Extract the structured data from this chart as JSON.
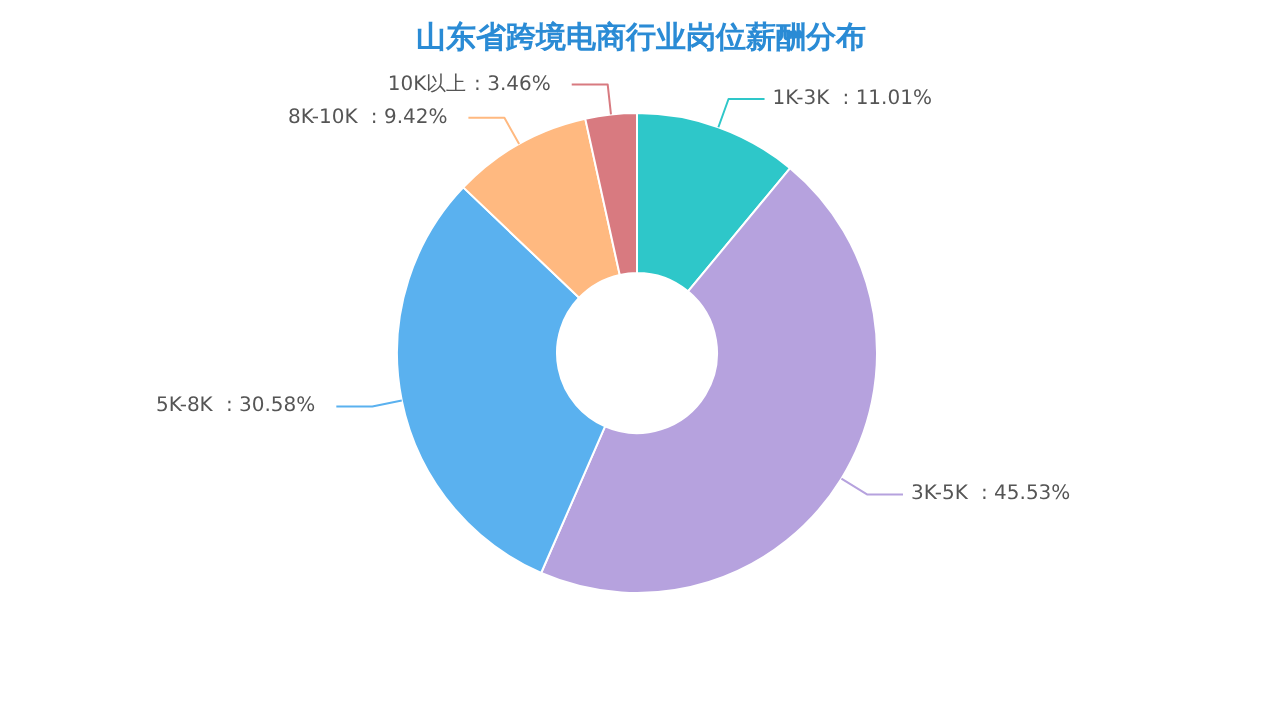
{
  "chart_data": {
    "type": "donut",
    "title": "山东省跨境电商行业岗位薪酬分布",
    "categories": [
      "1K-3K",
      "3K-5K",
      "5K-8K",
      "8K-10K",
      "10K以上"
    ],
    "values": [
      11.01,
      45.53,
      30.58,
      9.42,
      3.46
    ],
    "colors": [
      "#2ec7c9",
      "#b6a2de",
      "#5ab1ef",
      "#ffb980",
      "#d87a80"
    ],
    "value_labels": [
      ": 11.01%",
      ": 45.53%",
      ": 30.58%",
      ": 9.42%",
      ": 3.46%"
    ],
    "legend": false
  }
}
